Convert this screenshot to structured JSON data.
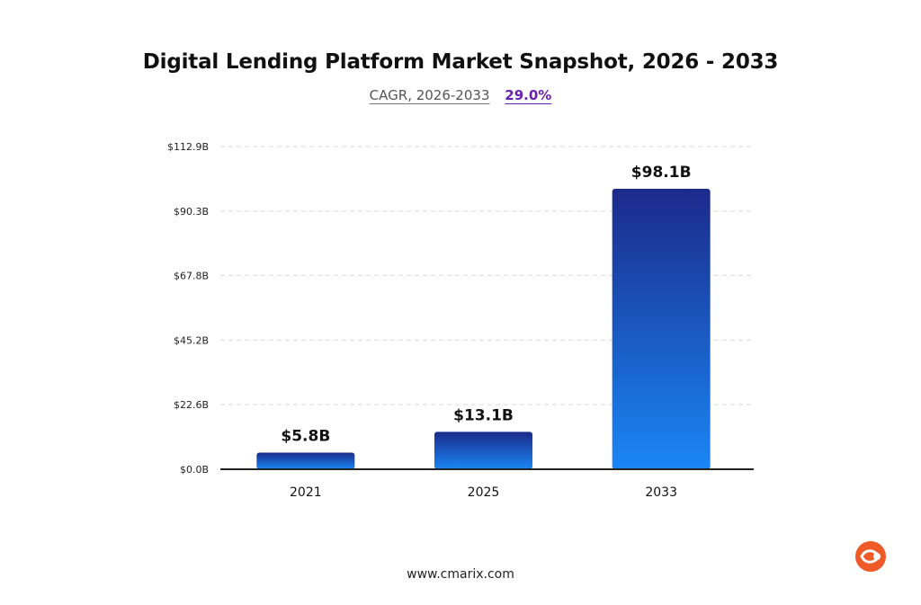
{
  "chart_data": {
    "type": "bar",
    "title": "Digital Lending Platform Market Snapshot, 2026 - 2033",
    "cagr": {
      "label": "CAGR, 2026-2033",
      "value": "29.0%"
    },
    "categories": [
      "2021",
      "2025",
      "2033"
    ],
    "values": [
      5.8,
      13.1,
      98.1
    ],
    "value_labels": [
      "$5.8B",
      "$13.1B",
      "$98.1B"
    ],
    "y_ticks": [
      0.0,
      22.6,
      45.2,
      67.8,
      90.3,
      112.9
    ],
    "y_tick_labels": [
      "$0.0B",
      "$22.6B",
      "$45.2B",
      "$67.8B",
      "$90.3B",
      "$112.9B"
    ],
    "ylim": [
      0,
      112.9
    ],
    "grid": true,
    "colors": {
      "bar_top": "#1b2a8a",
      "bar_bottom": "#1a86f5",
      "accent": "#6a1fb0",
      "grid": "#d9d9d9"
    }
  },
  "footer": {
    "url": "www.cmarix.com"
  },
  "logo": {
    "icon": "cmarix-logo-icon",
    "color": "#f05a28"
  }
}
